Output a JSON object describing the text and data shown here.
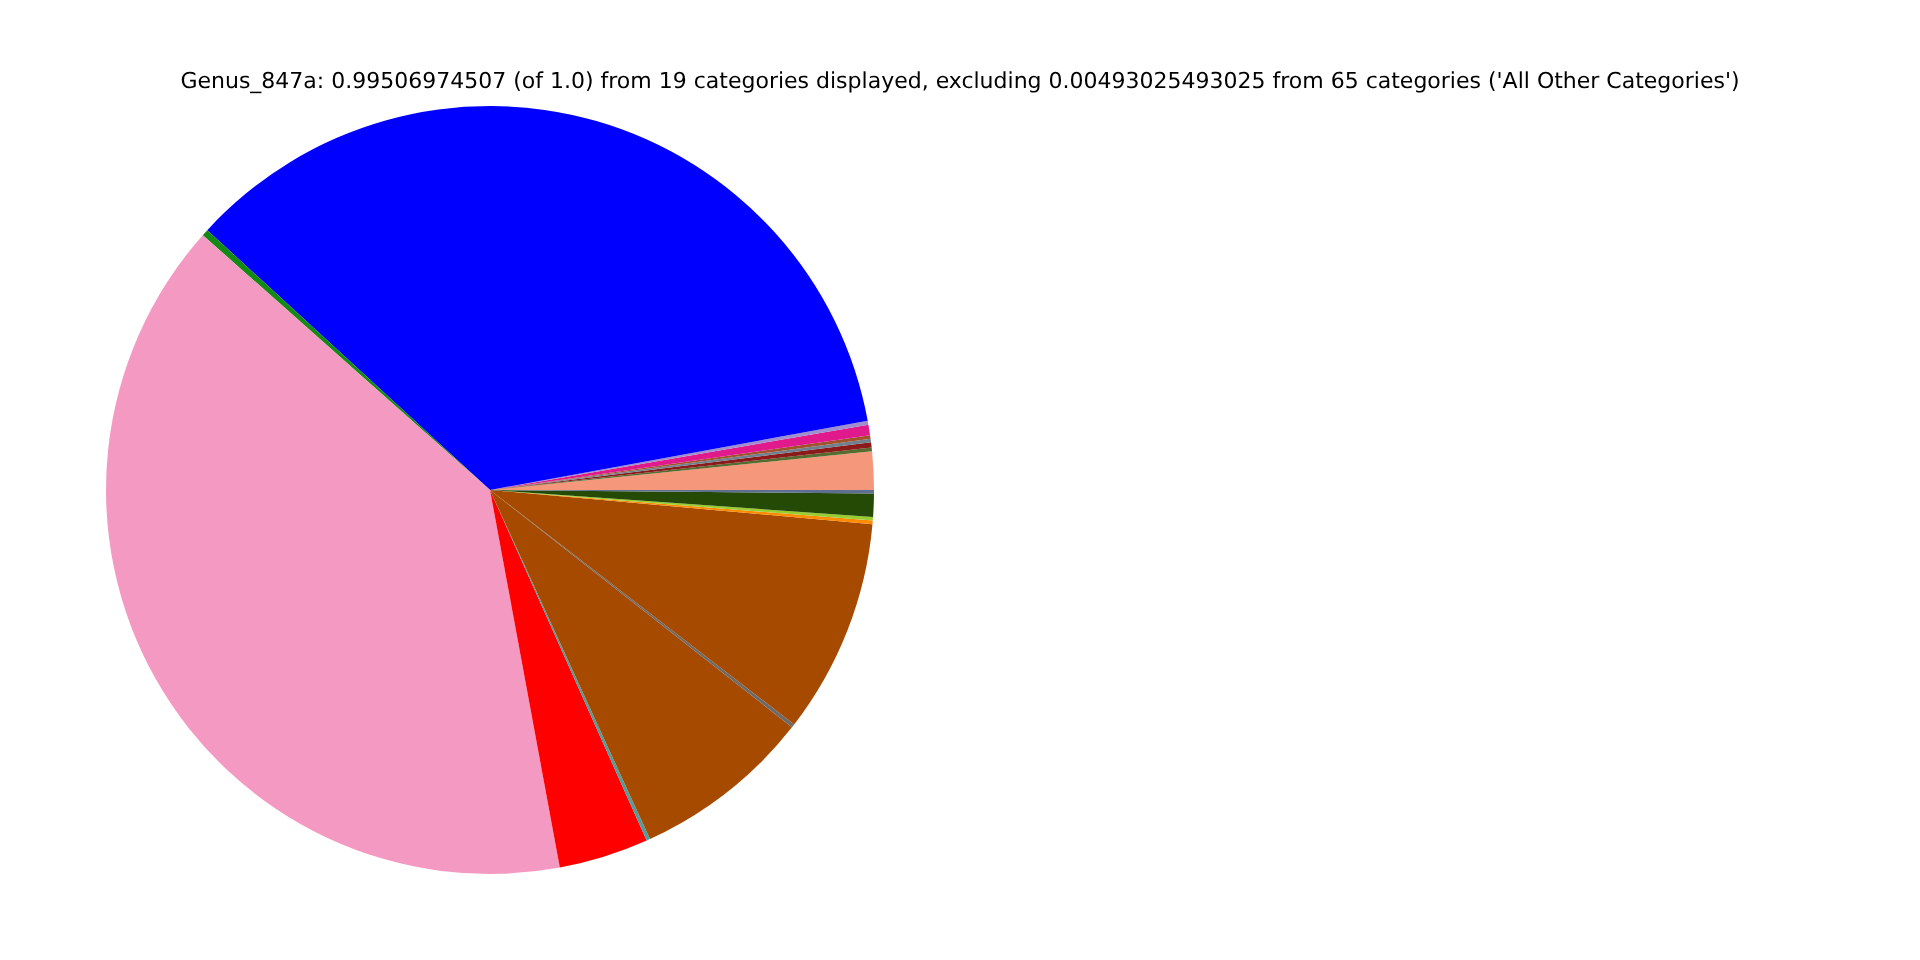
{
  "chart_data": {
    "type": "pie",
    "title": "Genus_847a: 0.99506974507 (of 1.0) from 19 categories displayed, excluding 0.00493025493025 from 65 categories ('All Other Categories')",
    "categories": [
      null,
      null,
      null,
      null,
      null,
      null,
      null,
      null,
      null,
      null,
      null,
      null,
      null,
      null,
      null,
      null,
      null,
      null,
      null
    ],
    "values": [
      1.61,
      0.15,
      0.22,
      0.15,
      0.15,
      0.44,
      0.17,
      35.28,
      0.28,
      39.46,
      3.78,
      0.15,
      7.56,
      0.15,
      9.03,
      0.15,
      0.15,
      0.97,
      0.15
    ],
    "colors": [
      "#f4977a",
      "#556b2f",
      "#8b1a1a",
      "#708090",
      "#a0522d",
      "#e0198c",
      "#9f8fd0",
      "#0000ff",
      "#138a13",
      "#f49ac2",
      "#ff0000",
      "#4f9f9f",
      "#a64a00",
      "#6b6b6b",
      "#a64a00",
      "#ff8c00",
      "#9acd32",
      "#244a05",
      "#5f6f8f"
    ]
  }
}
